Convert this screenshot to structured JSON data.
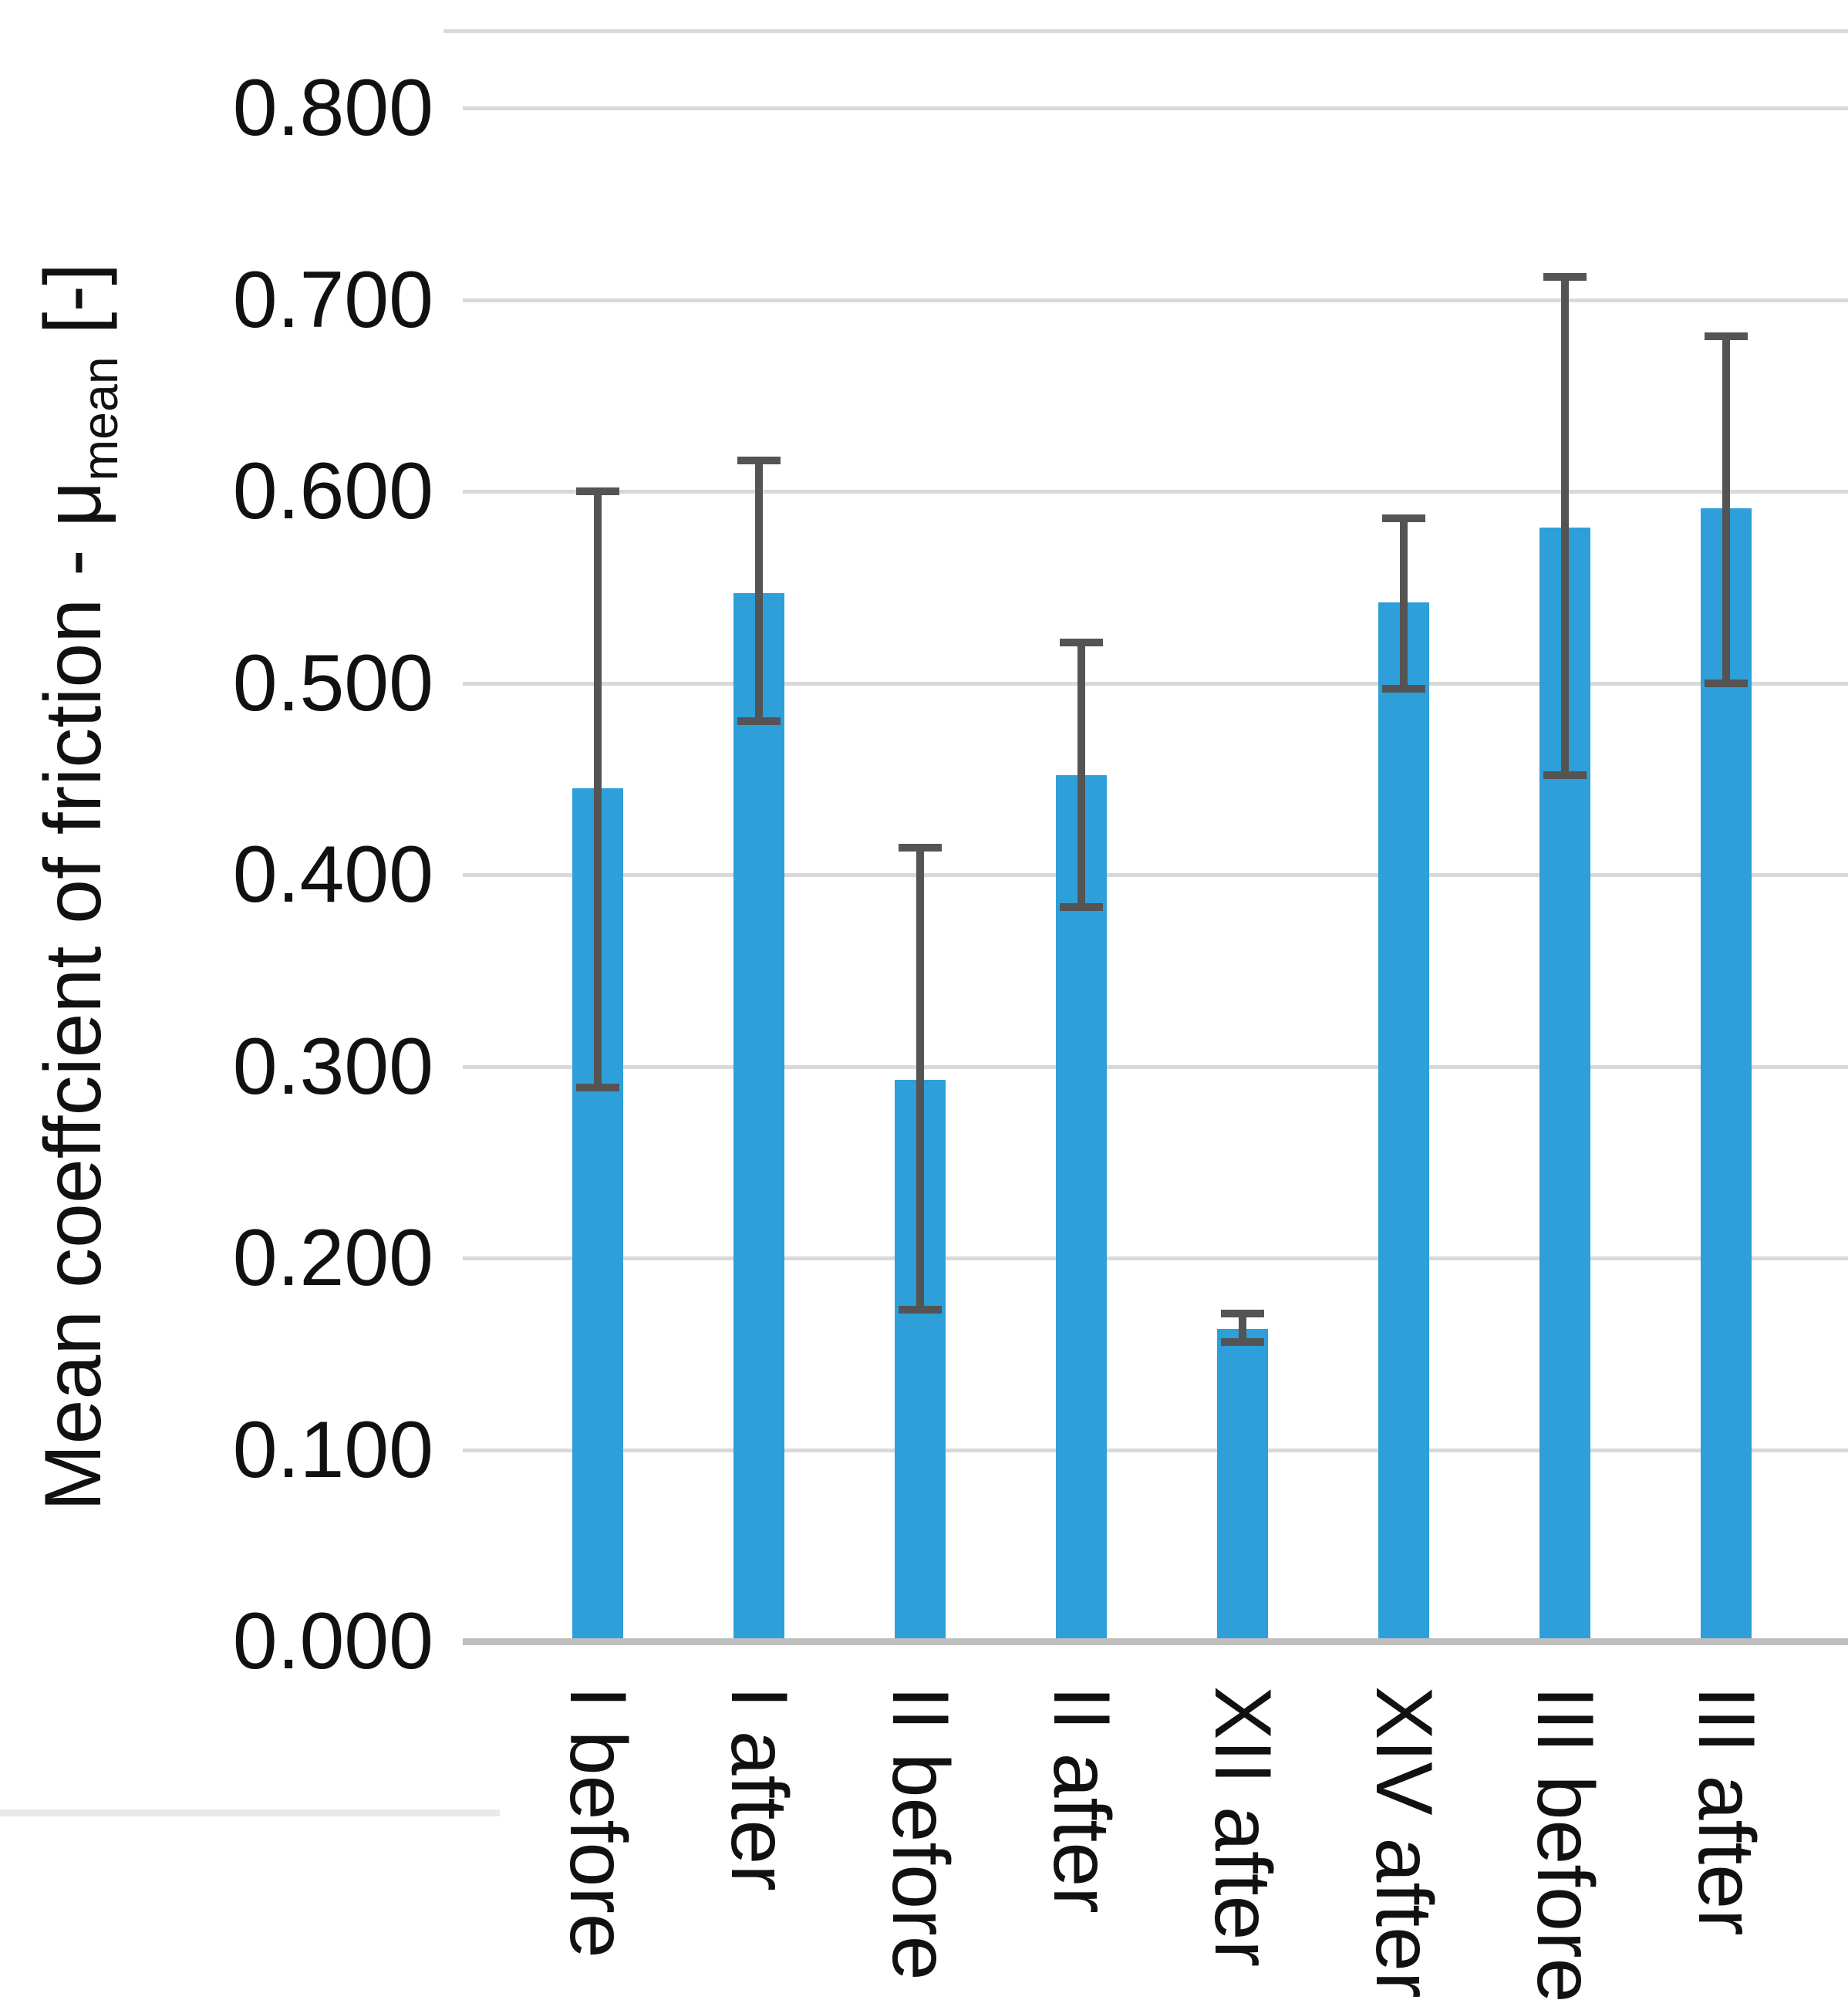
{
  "chart_data": {
    "type": "bar",
    "title": "",
    "ylabel_main": "Mean coeffcient of friction - μ",
    "ylabel_sub": "mean",
    "ylabel_unit": " [-]",
    "categories": [
      "I before",
      "I after",
      "II before",
      "II after",
      "XII after",
      "XIV after",
      "III before",
      "III after"
    ],
    "values": [
      0.445,
      0.547,
      0.293,
      0.452,
      0.163,
      0.542,
      0.581,
      0.591
    ],
    "error_plus": [
      0.155,
      0.069,
      0.121,
      0.069,
      0.008,
      0.044,
      0.131,
      0.09
    ],
    "error_minus": [
      0.156,
      0.067,
      0.12,
      0.069,
      0.007,
      0.045,
      0.129,
      0.091
    ],
    "ylim": [
      0.0,
      0.8
    ],
    "ytick_labels": [
      "0.800",
      "0.700",
      "0.600",
      "0.500",
      "0.400",
      "0.300",
      "0.200",
      "0.100",
      "0.000"
    ],
    "ytick_values": [
      0.8,
      0.7,
      0.6,
      0.5,
      0.4,
      0.3,
      0.2,
      0.1,
      0.0
    ],
    "grid": true,
    "legend_position": "none",
    "colors": {
      "bar": "#2E9FD9",
      "error_bar": "#545454",
      "gridline": "#D9D9D9",
      "axis_line": "#BFBFBF",
      "text": "#111111",
      "border_line": "#E9E9E9"
    }
  }
}
